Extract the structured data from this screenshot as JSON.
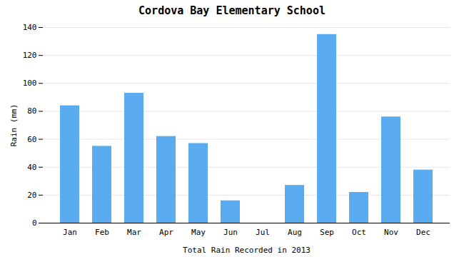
{
  "chart_data": {
    "type": "bar",
    "title": "Cordova Bay Elementary School",
    "xlabel": "Total Rain Recorded in 2013",
    "ylabel": "Rain (mm)",
    "categories": [
      "Jan",
      "Feb",
      "Mar",
      "Apr",
      "May",
      "Jun",
      "Jul",
      "Aug",
      "Sep",
      "Oct",
      "Nov",
      "Dec"
    ],
    "values": [
      84,
      55,
      93,
      62,
      57,
      16,
      0,
      27,
      135,
      22,
      76,
      38
    ],
    "color": "#5aabf0",
    "ylim": [
      0,
      140
    ],
    "yticks": [
      0,
      20,
      40,
      60,
      80,
      100,
      120,
      140
    ],
    "grid": true
  }
}
